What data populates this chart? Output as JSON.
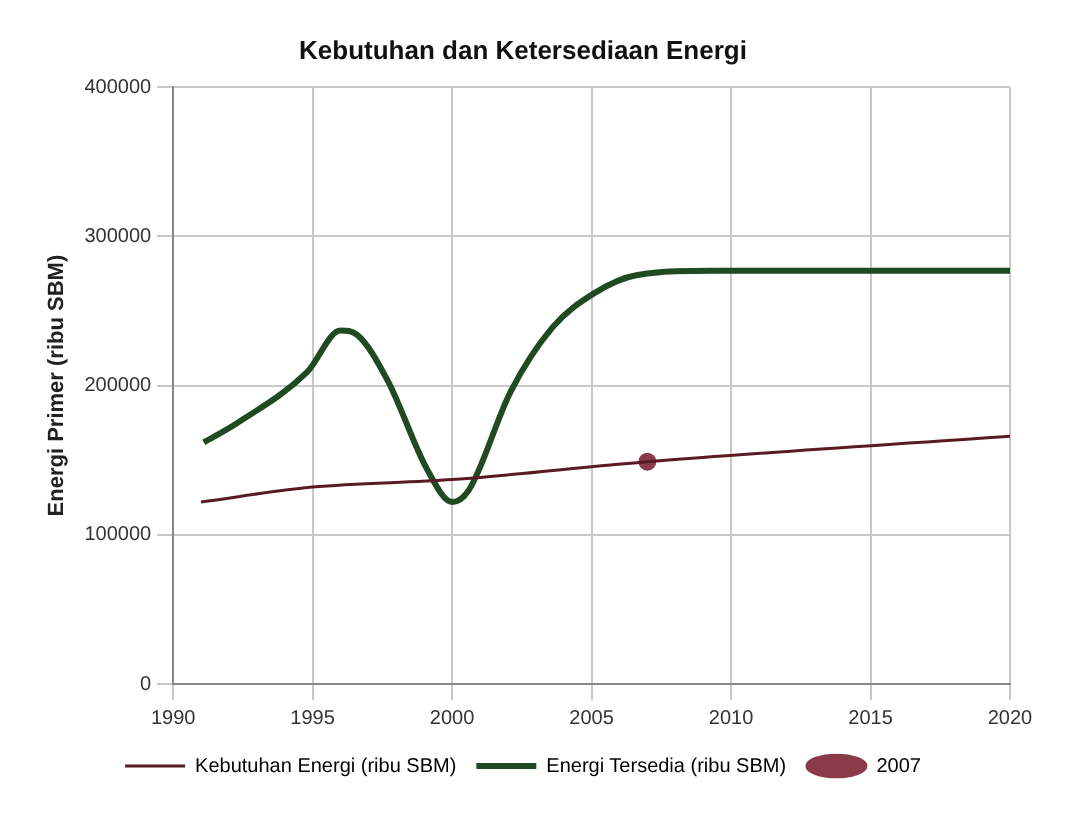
{
  "chart_data": {
    "type": "line",
    "title": "Kebutuhan dan Ketersediaan Energi",
    "ylabel": "Energi Primer (ribu SBM)",
    "xlim": [
      1990,
      2020
    ],
    "xticks": [
      1990,
      1995,
      2000,
      2005,
      2010,
      2015,
      2020
    ],
    "ylim": [
      0,
      400000
    ],
    "yticks": [
      0,
      100000,
      200000,
      300000,
      400000
    ],
    "grid": true,
    "legend": "bottom",
    "marker": "none",
    "series": [
      {
        "name": "Kebutuhan Energi (ribu SBM)",
        "color": "#5a1a24",
        "x": [
          1991,
          1995,
          2000,
          2007,
          2020
        ],
        "values": [
          122000,
          132000,
          137000,
          149000,
          166000
        ]
      },
      {
        "name": "Energi Tersedia (ribu SBM)",
        "color": "#1f4a22",
        "x": [
          1991.1,
          1992.3,
          1994.8,
          1996,
          1996.6,
          1997.7,
          1999.1,
          2000,
          2000.6,
          2002.1,
          2003.6,
          2005.1,
          2006.6,
          2009.4,
          2020
        ],
        "values": [
          162000,
          175000,
          209000,
          237000,
          234000,
          203000,
          144000,
          122000,
          130000,
          196000,
          239000,
          262000,
          274000,
          277000,
          277000
        ]
      },
      {
        "name": "2007",
        "type": "scatter",
        "marker": "circle",
        "color": "#8b3a4a",
        "x": [
          2007
        ],
        "values": [
          149000
        ]
      }
    ]
  }
}
